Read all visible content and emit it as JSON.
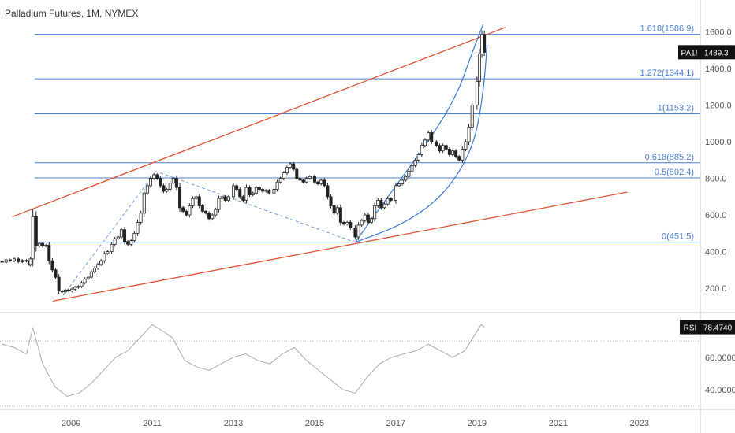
{
  "chart_title": "Palladium Futures, 1M, NYMEX",
  "colors": {
    "fib_line": "#4a7fd6",
    "fib_text": "#4a7fd6",
    "trend_line": "#e05538",
    "arc": "#3a78d8",
    "dashed": "#6f9ad8",
    "candle": "#222222",
    "rsi_line": "#aaaaaa",
    "rsi_band": "#999999",
    "badge_bg": "#111111",
    "badge_text": "#ffffff",
    "axis_text": "#555555"
  },
  "chart_data": [
    {
      "type": "candlestick",
      "title": "Palladium Futures, 1M, NYMEX",
      "x_tick_labels": [
        "2009",
        "2011",
        "2013",
        "2015",
        "2017",
        "2019",
        "2021",
        "2023"
      ],
      "x_range": [
        2007.25,
        2024.5
      ],
      "y_tick_labels": [
        "200.0",
        "400.0",
        "600.0",
        "800.0",
        "1000.0",
        "1200.0",
        "1400.0",
        "1600.0"
      ],
      "y_ticks": [
        200,
        400,
        600,
        800,
        1000,
        1200,
        1400,
        1600
      ],
      "ylim": [
        80,
        1680
      ],
      "last_price_label": "PA1!",
      "last_price": "1489.3",
      "fib_levels": [
        {
          "label": "1.618(1586.9)",
          "value": 1586.9
        },
        {
          "label": "1.272(1344.1)",
          "value": 1344.1
        },
        {
          "label": "1(1153.2)",
          "value": 1153.2
        },
        {
          "label": "0.618(885.2)",
          "value": 885.2
        },
        {
          "label": "0.5(802.4)",
          "value": 802.4
        },
        {
          "label": "0(451.5)",
          "value": 451.5
        }
      ],
      "fib_x_start": 2008.1,
      "trend_lines": [
        {
          "x1": 2007.55,
          "y1": 590,
          "x2": 2019.7,
          "y2": 1625
        },
        {
          "x1": 2008.55,
          "y1": 130,
          "x2": 2022.7,
          "y2": 725
        }
      ],
      "dashed_lines": [
        {
          "x1": 2008.8,
          "y1": 160,
          "x2": 2011.1,
          "y2": 840
        },
        {
          "x1": 2011.2,
          "y1": 830,
          "x2": 2016.0,
          "y2": 451
        }
      ],
      "arcs": [
        {
          "points": [
            [
              2016.0,
              451
            ],
            [
              2017.0,
              760
            ],
            [
              2017.8,
              1000
            ],
            [
              2018.5,
              1250
            ],
            [
              2018.9,
              1500
            ],
            [
              2019.15,
              1640
            ]
          ]
        },
        {
          "points": [
            [
              2016.0,
              451
            ],
            [
              2017.2,
              550
            ],
            [
              2018.2,
              710
            ],
            [
              2018.9,
              960
            ],
            [
              2019.15,
              1250
            ],
            [
              2019.25,
              1530
            ]
          ]
        }
      ],
      "candles": [
        [
          2007.3,
          348,
          342
        ],
        [
          2007.4,
          342,
          355
        ],
        [
          2007.5,
          355,
          350
        ],
        [
          2007.6,
          350,
          360
        ],
        [
          2007.7,
          360,
          345
        ],
        [
          2007.8,
          345,
          352
        ],
        [
          2007.9,
          352,
          348
        ],
        [
          2007.97,
          348,
          330
        ],
        [
          2008.0,
          330,
          360
        ],
        [
          2008.06,
          360,
          590
        ],
        [
          2008.14,
          590,
          430
        ],
        [
          2008.22,
          430,
          445
        ],
        [
          2008.3,
          445,
          430
        ],
        [
          2008.38,
          430,
          435
        ],
        [
          2008.46,
          435,
          350
        ],
        [
          2008.54,
          350,
          300
        ],
        [
          2008.62,
          300,
          260
        ],
        [
          2008.7,
          260,
          185
        ],
        [
          2008.78,
          185,
          180
        ],
        [
          2008.86,
          180,
          190
        ],
        [
          2008.94,
          190,
          185
        ],
        [
          2009.02,
          185,
          195
        ],
        [
          2009.1,
          195,
          205
        ],
        [
          2009.18,
          205,
          210
        ],
        [
          2009.26,
          210,
          230
        ],
        [
          2009.34,
          230,
          250
        ],
        [
          2009.42,
          250,
          260
        ],
        [
          2009.5,
          260,
          290
        ],
        [
          2009.58,
          290,
          310
        ],
        [
          2009.66,
          310,
          330
        ],
        [
          2009.74,
          330,
          350
        ],
        [
          2009.82,
          350,
          390
        ],
        [
          2009.9,
          390,
          400
        ],
        [
          2010.0,
          400,
          440
        ],
        [
          2010.08,
          440,
          470
        ],
        [
          2010.16,
          470,
          480
        ],
        [
          2010.24,
          480,
          520
        ],
        [
          2010.32,
          520,
          455
        ],
        [
          2010.4,
          455,
          440
        ],
        [
          2010.48,
          440,
          460
        ],
        [
          2010.56,
          460,
          500
        ],
        [
          2010.64,
          500,
          560
        ],
        [
          2010.72,
          560,
          610
        ],
        [
          2010.8,
          610,
          720
        ],
        [
          2010.88,
          720,
          760
        ],
        [
          2010.96,
          760,
          800
        ],
        [
          2011.04,
          800,
          820
        ],
        [
          2011.12,
          820,
          800
        ],
        [
          2011.2,
          800,
          760
        ],
        [
          2011.28,
          760,
          730
        ],
        [
          2011.36,
          730,
          740
        ],
        [
          2011.44,
          740,
          775
        ],
        [
          2011.52,
          775,
          800
        ],
        [
          2011.6,
          800,
          750
        ],
        [
          2011.68,
          750,
          640
        ],
        [
          2011.76,
          640,
          620
        ],
        [
          2011.84,
          620,
          600
        ],
        [
          2011.92,
          600,
          650
        ],
        [
          2012.0,
          650,
          690
        ],
        [
          2012.08,
          690,
          700
        ],
        [
          2012.16,
          700,
          650
        ],
        [
          2012.24,
          650,
          620
        ],
        [
          2012.32,
          620,
          610
        ],
        [
          2012.4,
          610,
          580
        ],
        [
          2012.48,
          580,
          600
        ],
        [
          2012.56,
          600,
          630
        ],
        [
          2012.64,
          630,
          690
        ],
        [
          2012.72,
          690,
          700
        ],
        [
          2012.8,
          700,
          680
        ],
        [
          2012.88,
          680,
          700
        ],
        [
          2013.0,
          700,
          760
        ],
        [
          2013.08,
          760,
          740
        ],
        [
          2013.16,
          740,
          700
        ],
        [
          2013.24,
          700,
          680
        ],
        [
          2013.32,
          680,
          750
        ],
        [
          2013.4,
          750,
          710
        ],
        [
          2013.48,
          710,
          720
        ],
        [
          2013.56,
          720,
          750
        ],
        [
          2013.64,
          750,
          740
        ],
        [
          2013.72,
          740,
          730
        ],
        [
          2013.8,
          730,
          735
        ],
        [
          2013.88,
          735,
          720
        ],
        [
          2014.0,
          720,
          740
        ],
        [
          2014.08,
          740,
          780
        ],
        [
          2014.16,
          780,
          800
        ],
        [
          2014.24,
          800,
          830
        ],
        [
          2014.32,
          830,
          860
        ],
        [
          2014.4,
          860,
          880
        ],
        [
          2014.48,
          880,
          850
        ],
        [
          2014.56,
          850,
          800
        ],
        [
          2014.64,
          800,
          790
        ],
        [
          2014.72,
          790,
          780
        ],
        [
          2014.8,
          780,
          800
        ],
        [
          2014.88,
          800,
          810
        ],
        [
          2015.0,
          810,
          780
        ],
        [
          2015.08,
          780,
          770
        ],
        [
          2015.16,
          770,
          790
        ],
        [
          2015.24,
          790,
          760
        ],
        [
          2015.32,
          760,
          700
        ],
        [
          2015.4,
          700,
          650
        ],
        [
          2015.48,
          650,
          610
        ],
        [
          2015.56,
          610,
          640
        ],
        [
          2015.64,
          640,
          560
        ],
        [
          2015.72,
          560,
          550
        ],
        [
          2015.8,
          550,
          560
        ],
        [
          2015.88,
          560,
          530
        ],
        [
          2016.0,
          530,
          480
        ],
        [
          2016.08,
          480,
          545
        ],
        [
          2016.16,
          545,
          570
        ],
        [
          2016.24,
          570,
          600
        ],
        [
          2016.32,
          600,
          560
        ],
        [
          2016.4,
          560,
          580
        ],
        [
          2016.48,
          580,
          650
        ],
        [
          2016.56,
          650,
          680
        ],
        [
          2016.64,
          680,
          640
        ],
        [
          2016.72,
          640,
          660
        ],
        [
          2016.8,
          660,
          690
        ],
        [
          2016.88,
          690,
          680
        ],
        [
          2017.0,
          680,
          760
        ],
        [
          2017.08,
          760,
          770
        ],
        [
          2017.16,
          770,
          790
        ],
        [
          2017.24,
          790,
          810
        ],
        [
          2017.32,
          810,
          840
        ],
        [
          2017.4,
          840,
          870
        ],
        [
          2017.48,
          870,
          900
        ],
        [
          2017.56,
          900,
          930
        ],
        [
          2017.64,
          930,
          980
        ],
        [
          2017.72,
          980,
          1010
        ],
        [
          2017.8,
          1010,
          1050
        ],
        [
          2017.88,
          1050,
          1000
        ],
        [
          2018.0,
          1000,
          980
        ],
        [
          2018.08,
          980,
          950
        ],
        [
          2018.16,
          950,
          980
        ],
        [
          2018.24,
          980,
          960
        ],
        [
          2018.32,
          960,
          930
        ],
        [
          2018.4,
          930,
          950
        ],
        [
          2018.48,
          950,
          920
        ],
        [
          2018.56,
          920,
          900
        ],
        [
          2018.64,
          900,
          960
        ],
        [
          2018.72,
          960,
          1000
        ],
        [
          2018.8,
          1000,
          1080
        ],
        [
          2018.88,
          1080,
          1200
        ],
        [
          2019.0,
          1200,
          1330
        ],
        [
          2019.06,
          1330,
          1480
        ],
        [
          2019.12,
          1480,
          1586
        ],
        [
          2019.18,
          1586,
          1489
        ]
      ]
    },
    {
      "type": "line",
      "indicator": "RSI",
      "label": "RSI",
      "last_value": "78.4740",
      "y_tick_labels": [
        "40.0000",
        "60.0000"
      ],
      "y_ticks": [
        40,
        60
      ],
      "ylim": [
        28,
        86
      ],
      "bands": [
        70,
        30
      ],
      "x": [
        2007.3,
        2007.6,
        2007.9,
        2008.06,
        2008.3,
        2008.6,
        2008.9,
        2009.2,
        2009.5,
        2009.8,
        2010.1,
        2010.4,
        2010.7,
        2011.0,
        2011.2,
        2011.5,
        2011.8,
        2012.1,
        2012.4,
        2012.7,
        2013.0,
        2013.3,
        2013.6,
        2013.9,
        2014.2,
        2014.5,
        2014.8,
        2015.1,
        2015.4,
        2015.7,
        2016.0,
        2016.3,
        2016.6,
        2016.9,
        2017.2,
        2017.5,
        2017.8,
        2018.1,
        2018.4,
        2018.7,
        2018.9,
        2019.1,
        2019.18
      ],
      "values": [
        68,
        66,
        62,
        78,
        56,
        42,
        36,
        38,
        44,
        52,
        60,
        64,
        72,
        80,
        77,
        72,
        58,
        54,
        52,
        56,
        60,
        62,
        58,
        56,
        62,
        66,
        58,
        52,
        46,
        40,
        38,
        48,
        56,
        60,
        62,
        64,
        68,
        64,
        60,
        64,
        72,
        80,
        78.47
      ]
    }
  ]
}
